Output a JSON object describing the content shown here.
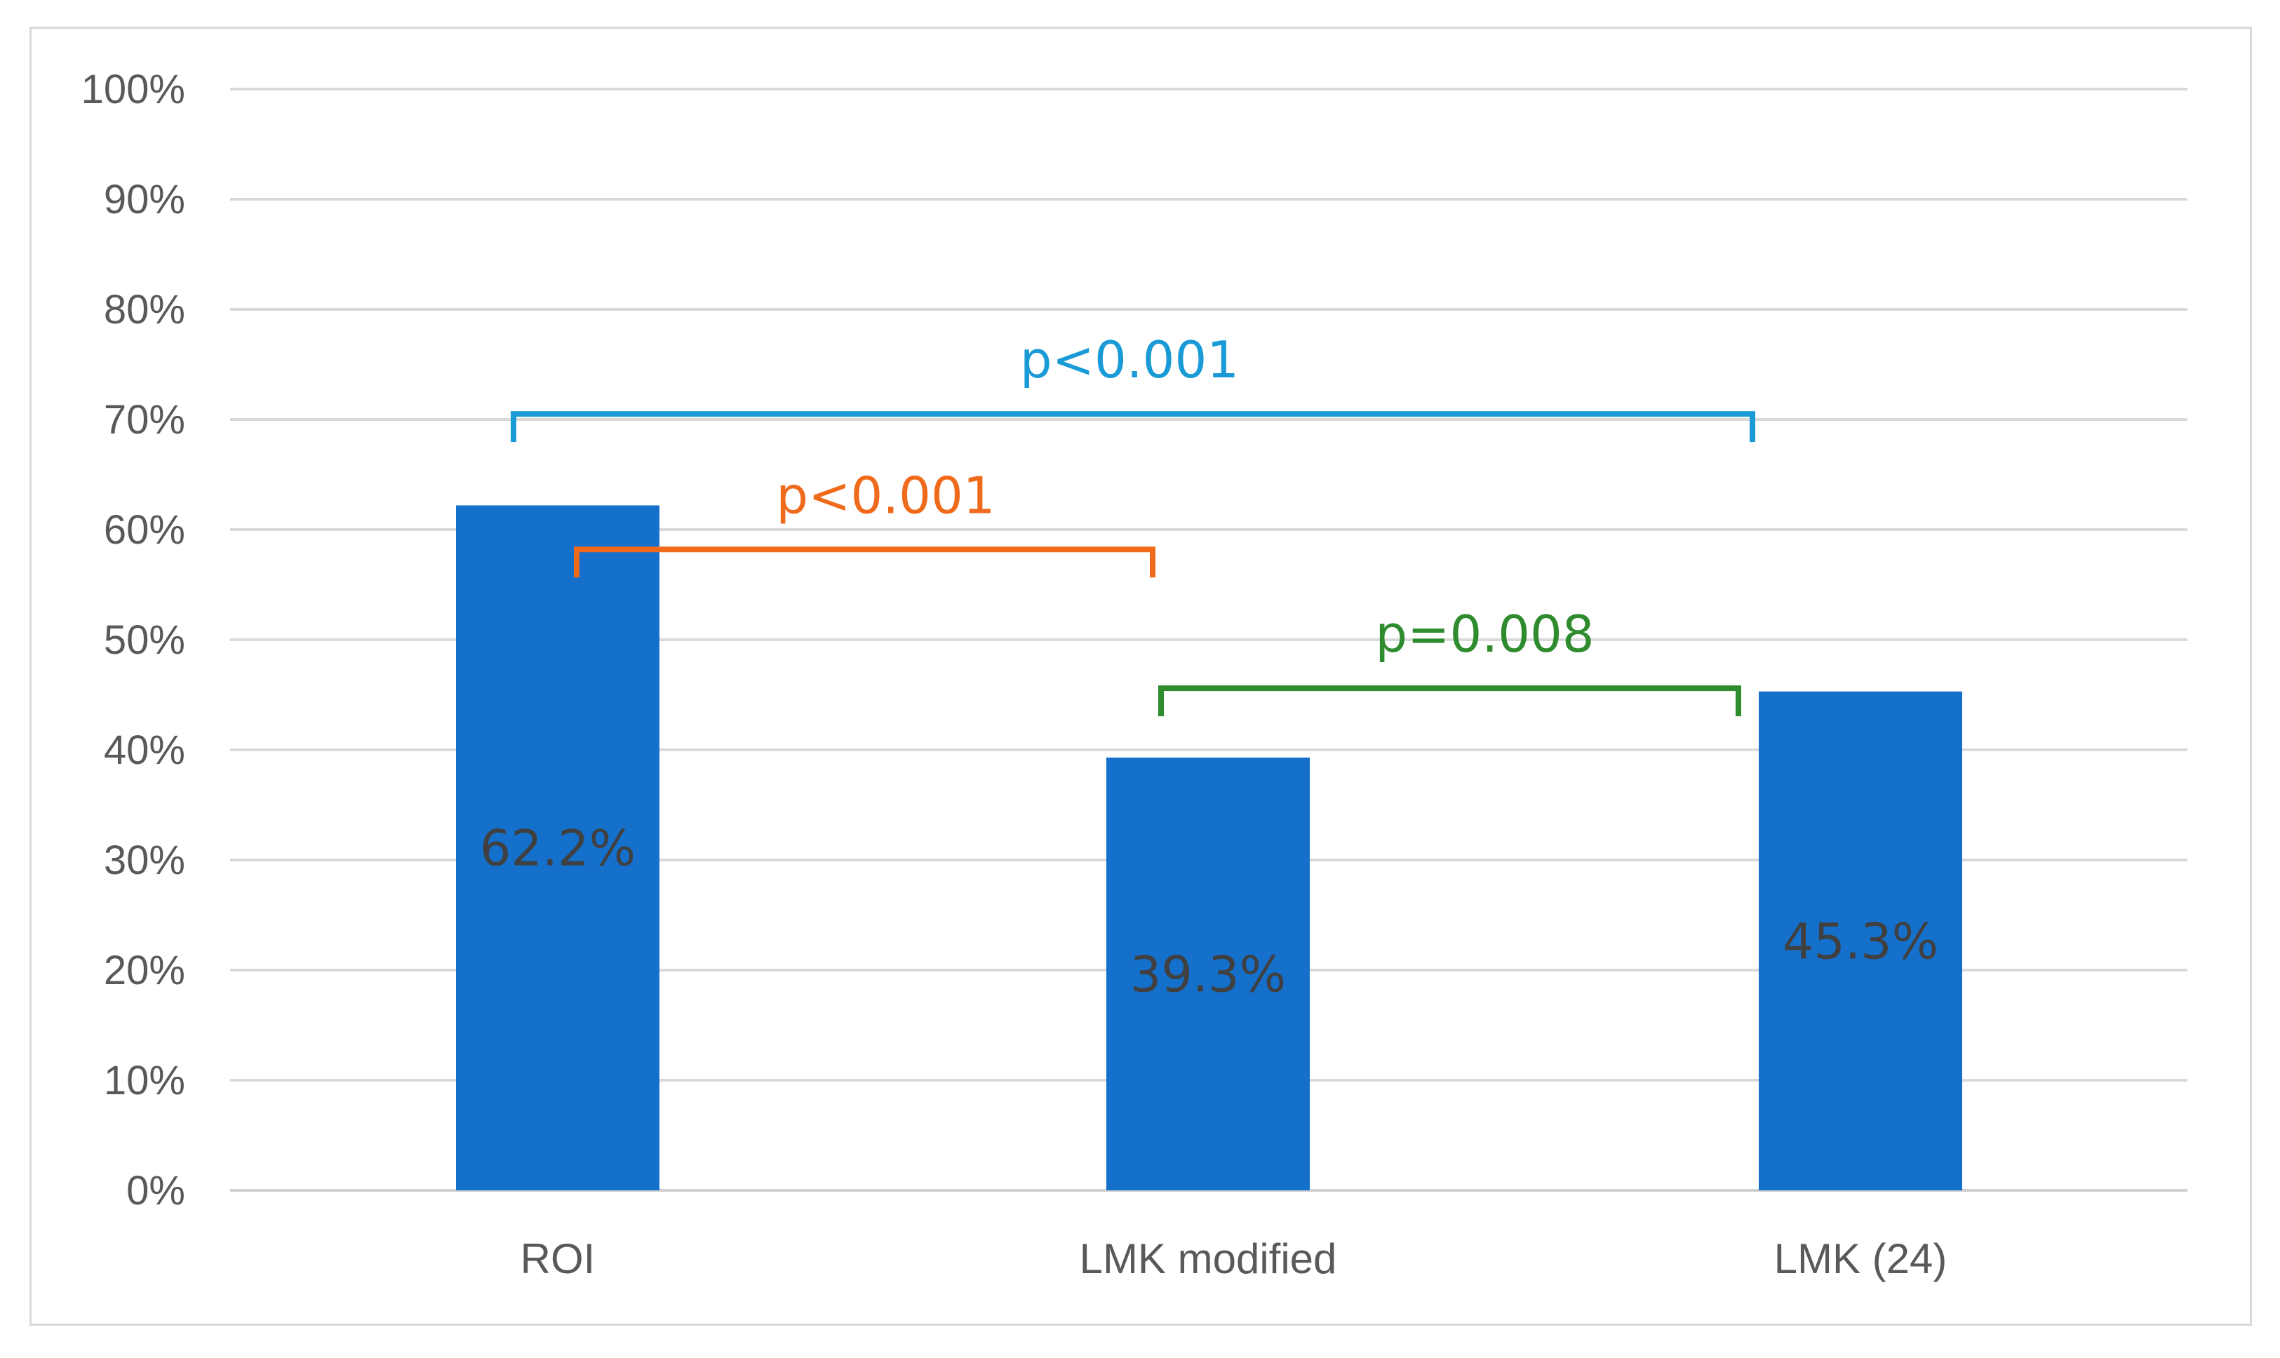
{
  "chart_data": {
    "type": "bar",
    "title": "",
    "xlabel": "",
    "ylabel": "",
    "categories": [
      "ROI",
      "LMK modified",
      "LMK (24)"
    ],
    "values": [
      62.2,
      39.3,
      45.3
    ],
    "data_labels": [
      "62.2%",
      "39.3%",
      "45.3%"
    ],
    "ylim": [
      0,
      100
    ],
    "y_ticks": [
      0,
      10,
      20,
      30,
      40,
      50,
      60,
      70,
      80,
      90,
      100
    ],
    "y_tick_labels": [
      "0%",
      "10%",
      "20%",
      "30%",
      "40%",
      "50%",
      "60%",
      "70%",
      "80%",
      "90%",
      "100%"
    ],
    "grid": true,
    "legend": "none",
    "bar_color": "#1570cc",
    "annotations": [
      {
        "text": "p<0.001",
        "from": "ROI",
        "to": "LMK (24)",
        "level": 70.5,
        "color": "#1a9ad6"
      },
      {
        "text": "p<0.001",
        "from": "ROI",
        "to": "LMK modified",
        "level": 58.2,
        "color": "#f06a1c"
      },
      {
        "text": "p=0.008",
        "from": "LMK modified",
        "to": "LMK (24)",
        "level": 45.6,
        "color": "#2e8b2e"
      }
    ]
  }
}
